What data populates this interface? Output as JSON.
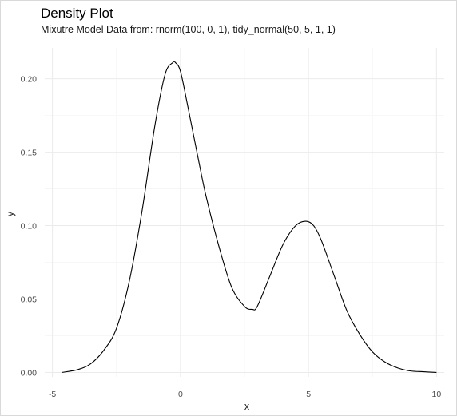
{
  "chart_data": {
    "type": "line",
    "title": "Density Plot",
    "subtitle": "Mixutre Model Data from: rnorm(100, 0, 1), tidy_normal(50, 5, 1, 1)",
    "xlabel": "x",
    "ylabel": "y",
    "xlim": [
      -5.3,
      10.3
    ],
    "ylim": [
      -0.003,
      0.221
    ],
    "x_ticks": [
      -5,
      0,
      5,
      10
    ],
    "y_ticks": [
      0.0,
      0.05,
      0.1,
      0.15,
      0.2
    ],
    "x_tick_labels": [
      "-5",
      "0",
      "5",
      "10"
    ],
    "y_tick_labels": [
      "0.00",
      "0.05",
      "0.10",
      "0.15",
      "0.20"
    ],
    "grid": true,
    "legend": "none",
    "series": [
      {
        "x": [
          -4.64,
          -4.0,
          -3.5,
          -3.0,
          -2.5,
          -2.0,
          -1.5,
          -1.0,
          -0.6,
          -0.3,
          -0.2,
          0.0,
          0.3,
          0.7,
          1.0,
          1.5,
          2.0,
          2.5,
          2.8,
          3.0,
          3.5,
          4.0,
          4.5,
          4.9,
          5.2,
          5.5,
          6.0,
          6.5,
          7.0,
          7.5,
          8.0,
          8.5,
          9.0,
          9.5,
          10.0
        ],
        "y": [
          0.0,
          0.002,
          0.006,
          0.015,
          0.03,
          0.062,
          0.11,
          0.168,
          0.203,
          0.211,
          0.211,
          0.205,
          0.18,
          0.145,
          0.12,
          0.086,
          0.058,
          0.045,
          0.043,
          0.045,
          0.066,
          0.087,
          0.1,
          0.103,
          0.1,
          0.09,
          0.066,
          0.042,
          0.026,
          0.014,
          0.007,
          0.003,
          0.001,
          0.0005,
          0.0
        ]
      }
    ]
  }
}
